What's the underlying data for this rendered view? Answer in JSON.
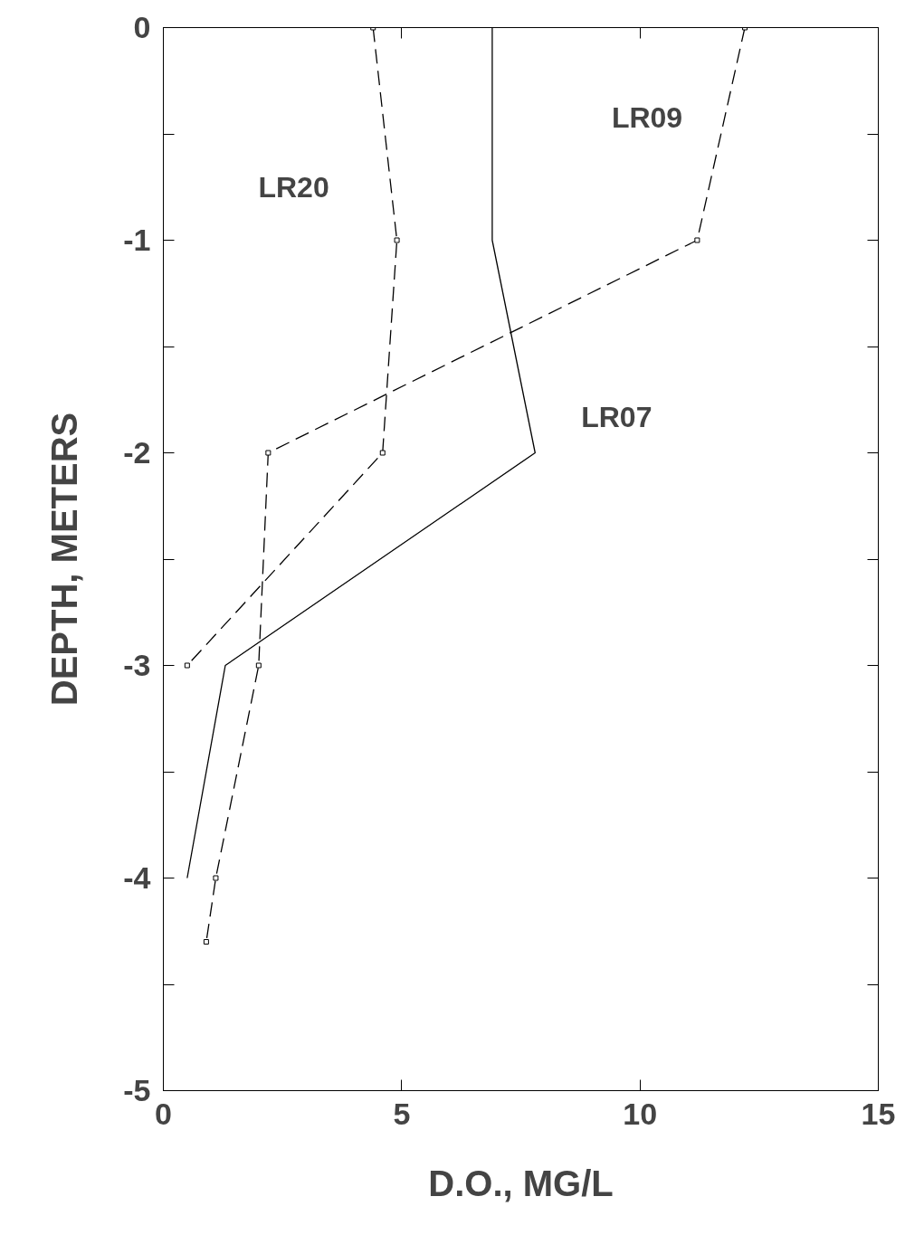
{
  "chart_data": {
    "type": "line",
    "xlabel": "D.O., MG/L",
    "ylabel": "DEPTH, METERS",
    "xlim": [
      0,
      15
    ],
    "ylim": [
      -5,
      0
    ],
    "xticks": [
      0,
      5,
      10,
      15
    ],
    "yticks": [
      0,
      {
        "value": -0.5,
        "label": null
      },
      -1,
      {
        "value": -1.5,
        "label": null
      },
      -2,
      {
        "value": -2.5,
        "label": null
      },
      -3,
      {
        "value": -3.5,
        "label": null
      },
      -4,
      {
        "value": -4.5,
        "label": null
      },
      -5
    ],
    "grid": false,
    "series": [
      {
        "name": "LR07",
        "color": "#000000",
        "line_style": "solid",
        "marker": "none",
        "x": [
          6.9,
          6.9,
          7.8,
          1.3,
          0.5
        ],
        "values": [
          0,
          -1,
          -2,
          -3,
          -4
        ]
      },
      {
        "name": "LR09",
        "color": "#000000",
        "line_style": "dashed",
        "marker": "square",
        "x": [
          12.2,
          11.2,
          2.2,
          2.0,
          1.1,
          0.9
        ],
        "values": [
          0,
          -1,
          -2,
          -3,
          -4,
          -4.3
        ]
      },
      {
        "name": "LR20",
        "color": "#000000",
        "line_style": "dashed",
        "marker": "square",
        "x": [
          4.4,
          4.9,
          4.6,
          0.5
        ],
        "values": [
          0,
          -1,
          -2,
          -3
        ]
      }
    ]
  }
}
